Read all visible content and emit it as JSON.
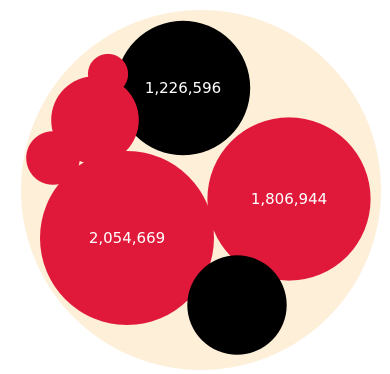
{
  "chart_data": {
    "type": "packed-bubble",
    "title": "",
    "colors": {
      "background_circle": "#fdefd8",
      "red": "#e0193a",
      "black": "#000000",
      "label": "#ffffff"
    },
    "bubbles": [
      {
        "value": 2054669,
        "label": "2,054,669",
        "color": "red"
      },
      {
        "value": 1806944,
        "label": "1,806,944",
        "color": "red"
      },
      {
        "value": 1226596,
        "label": "1,226,596",
        "color": "black"
      },
      {
        "value": 670000,
        "label": "",
        "color": "black"
      },
      {
        "value": 520000,
        "label": "",
        "color": "red"
      },
      {
        "value": 195000,
        "label": "",
        "color": "red"
      },
      {
        "value": 110000,
        "label": "",
        "color": "red"
      }
    ]
  }
}
